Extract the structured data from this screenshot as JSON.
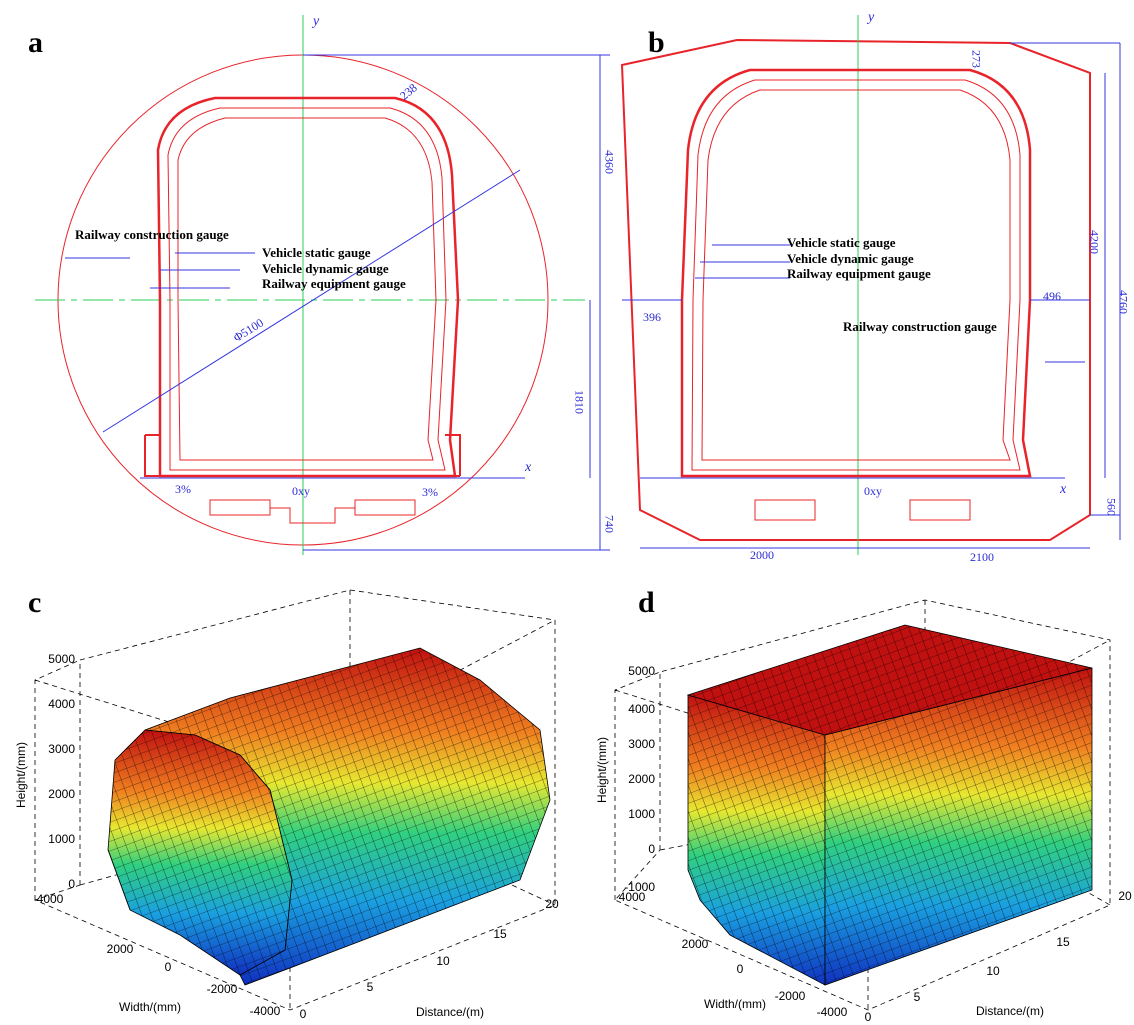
{
  "panels": [
    {
      "label": "a",
      "axis_x": "x",
      "axis_y": "y",
      "origin": "0xy",
      "gauges": [
        "Railway construction gauge",
        "Vehicle static gauge",
        "Vehicle dynamic gauge",
        "Railway equipment gauge"
      ],
      "dimensions": [
        238,
        4360,
        1810,
        740,
        "Φ5100",
        "3%",
        "3%"
      ]
    },
    {
      "label": "b",
      "axis_x": "x",
      "axis_y": "y",
      "origin": "0xy",
      "gauges": [
        "Vehicle static gauge",
        "Vehicle dynamic gauge",
        "Railway equipment gauge",
        "Railway construction gauge"
      ],
      "dimensions": [
        273,
        396,
        496,
        4200,
        4760,
        560,
        2000,
        2100
      ]
    }
  ],
  "plots": [
    {
      "label": "c",
      "z_label": "Height/(mm)",
      "y_label": "Width/(mm)",
      "x_label": "Distance/(m)",
      "z_ticks": [
        0,
        1000,
        2000,
        3000,
        4000,
        5000
      ],
      "y_ticks": [
        4000,
        2000,
        0,
        -2000,
        -4000
      ],
      "x_ticks": [
        0,
        5,
        10,
        15,
        20
      ]
    },
    {
      "label": "d",
      "z_label": "Height/(mm)",
      "y_label": "Width/(mm)",
      "x_label": "Distance/(m)",
      "z_ticks": [
        -1000,
        0,
        1000,
        2000,
        3000,
        4000,
        5000
      ],
      "y_ticks": [
        4000,
        2000,
        0,
        -2000,
        -4000
      ],
      "x_ticks": [
        0,
        5,
        10,
        15,
        20
      ]
    }
  ]
}
